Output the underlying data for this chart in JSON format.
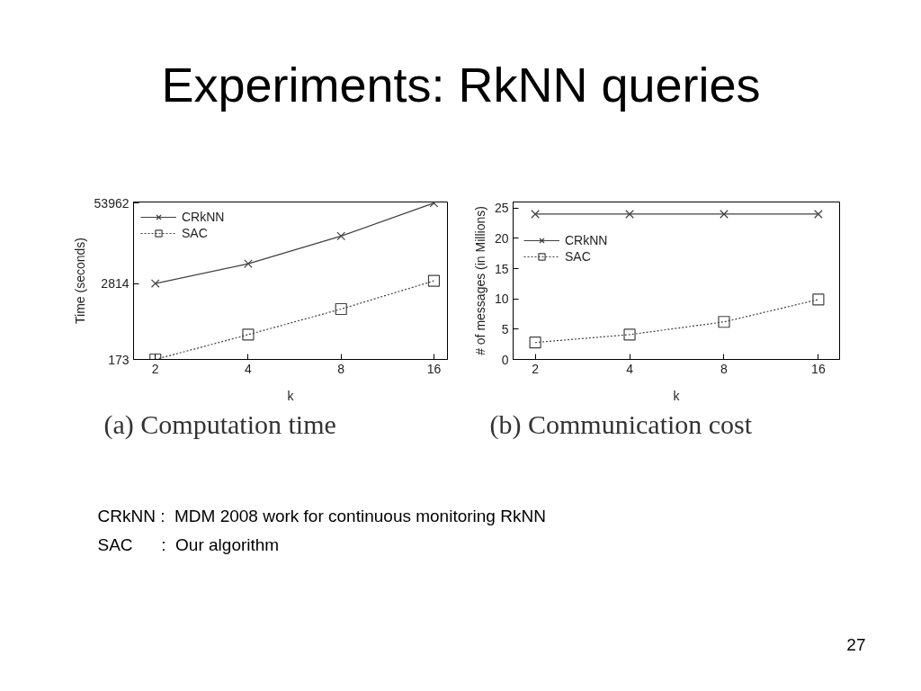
{
  "chart_data": [
    {
      "type": "other",
      "title": "Experiments: RkNN queries"
    },
    {
      "type": "line",
      "title": "(a) Computation time",
      "xlabel": "k",
      "ylabel": "Time (seconds)",
      "x": [
        2,
        4,
        8,
        16
      ],
      "log": "xy",
      "xlim": [
        1.7,
        17.7
      ],
      "xticks": [
        2,
        4,
        8,
        16
      ],
      "ylim": [
        173,
        56000
      ],
      "yticks": [
        173,
        2814,
        53962
      ],
      "grid": false,
      "legend": "top left",
      "series": [
        {
          "name": "CRkNN",
          "color": "#404040",
          "marker": "cross",
          "line_style": "solid",
          "values": [
            2814,
            5800,
            16000,
            53962
          ]
        },
        {
          "name": "SAC",
          "color": "#404040",
          "marker": "square",
          "line_style": "dotted",
          "values": [
            173,
            430,
            1100,
            3100
          ]
        }
      ]
    },
    {
      "type": "line",
      "title": "(b) Communication cost",
      "xlabel": "k",
      "ylabel": "# of messages (in Millions)",
      "x": [
        2,
        4,
        8,
        16
      ],
      "log": "x",
      "xlim": [
        1.7,
        18.7
      ],
      "xticks": [
        2,
        4,
        8,
        16
      ],
      "ylim": [
        0,
        26
      ],
      "yticks": [
        0,
        5,
        10,
        15,
        20,
        25
      ],
      "grid": false,
      "legend": "top left",
      "series": [
        {
          "name": "CRkNN",
          "color": "#404040",
          "marker": "cross",
          "line_style": "solid",
          "values": [
            24,
            24,
            24,
            24
          ]
        },
        {
          "name": "SAC",
          "color": "#404040",
          "marker": "square",
          "line_style": "dotted",
          "values": [
            2.8,
            4.1,
            6.2,
            9.9
          ]
        }
      ]
    },
    {
      "type": "other",
      "annotations": [
        "CRkNN :  MDM 2008 work for continuous monitoring RkNN",
        "SAC      :  Our algorithm"
      ]
    },
    {
      "type": "other",
      "annotations": [
        "27"
      ]
    }
  ]
}
